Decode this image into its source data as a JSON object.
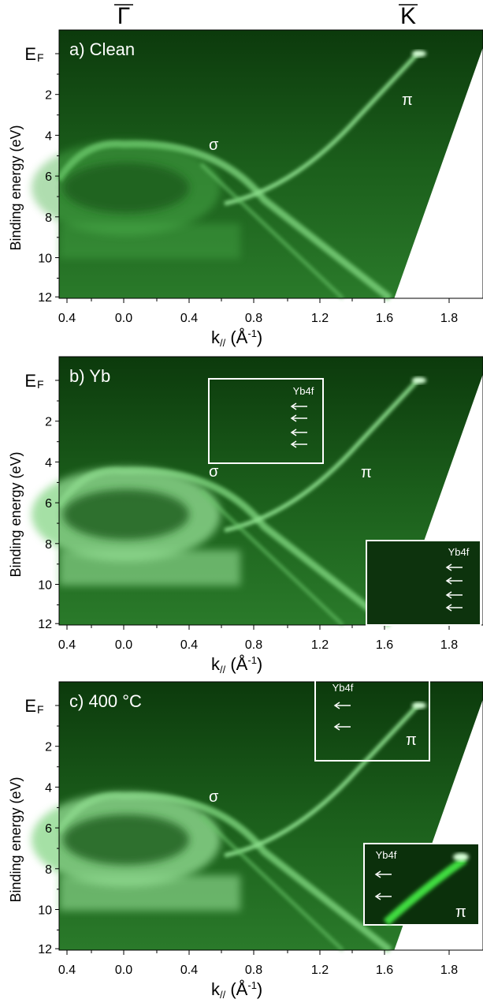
{
  "header": {
    "gamma": "Γ",
    "k": "K"
  },
  "panels": [
    {
      "label": "a) Clean",
      "y_title": "Binding energy (eV)",
      "yticks": [
        {
          "main": "E",
          "sub": "F"
        },
        "2",
        "4",
        "6",
        "8",
        "10",
        "12"
      ],
      "xticks": [
        "0.4",
        "0.0",
        "0.4",
        "0.8",
        "1.2",
        "1.6",
        "1.8"
      ],
      "x_title": {
        "main": "k",
        "sub": "//",
        "unit": " (Å",
        "sup": "-1",
        "end": ")"
      },
      "sigma": "σ",
      "pi": "π"
    },
    {
      "label": "b) Yb",
      "y_title": "Binding energy (eV)",
      "yticks": [
        {
          "main": "E",
          "sub": "F"
        },
        "2",
        "4",
        "6",
        "8",
        "10",
        "12"
      ],
      "xticks": [
        "0.4",
        "0.0",
        "0.4",
        "0.8",
        "1.2",
        "1.6",
        "1.8"
      ],
      "x_title": {
        "main": "k",
        "sub": "//",
        "unit": " (Å",
        "sup": "-1",
        "end": ")"
      },
      "sigma": "σ",
      "pi": "π",
      "box_label": "Yb4f",
      "inset_label": "Yb4f"
    },
    {
      "label": "c) 400 °C",
      "y_title": "Binding energy (eV)",
      "yticks": [
        {
          "main": "E",
          "sub": "F"
        },
        "2",
        "4",
        "6",
        "8",
        "10",
        "12"
      ],
      "xticks": [
        "0.4",
        "0.0",
        "0.4",
        "0.8",
        "1.2",
        "1.6",
        "1.8"
      ],
      "x_title": {
        "main": "k",
        "sub": "//",
        "unit": " (Å",
        "sup": "-1",
        "end": ")"
      },
      "sigma": "σ",
      "box_label": "Yb4f",
      "box_pi": "π",
      "inset_label": "Yb4f",
      "inset_pi": "π"
    }
  ]
}
